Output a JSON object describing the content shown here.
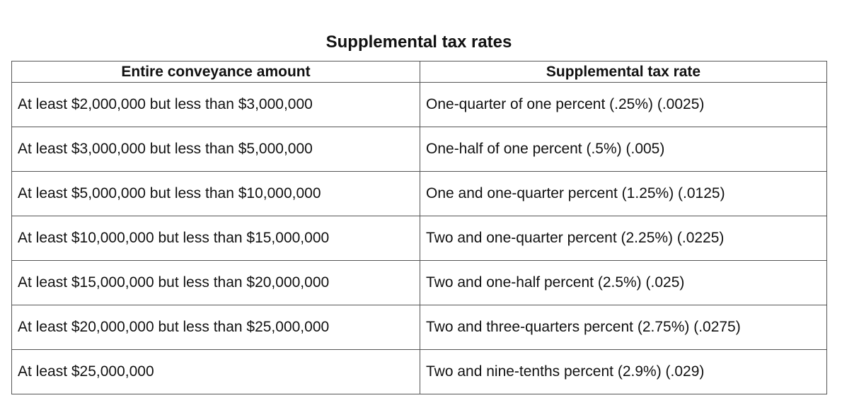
{
  "title": "Supplemental tax rates",
  "table": {
    "headers": [
      "Entire conveyance amount",
      "Supplemental tax rate"
    ],
    "rows": [
      [
        "At least $2,000,000 but less than $3,000,000",
        "One-quarter of one percent (.25%) (.0025)"
      ],
      [
        "At least $3,000,000 but less than $5,000,000",
        "One-half of one percent (.5%) (.005)"
      ],
      [
        "At least $5,000,000 but less than $10,000,000",
        "One and one-quarter percent (1.25%) (.0125)"
      ],
      [
        "At least $10,000,000 but less than $15,000,000",
        "Two and one-quarter percent (2.25%) (.0225)"
      ],
      [
        "At least $15,000,000 but less than $20,000,000",
        "Two and one-half percent (2.5%) (.025)"
      ],
      [
        "At least $20,000,000 but less than $25,000,000",
        "Two and three-quarters percent (2.75%) (.0275)"
      ],
      [
        "At least $25,000,000",
        "Two and nine-tenths percent (2.9%) (.029)"
      ]
    ]
  }
}
